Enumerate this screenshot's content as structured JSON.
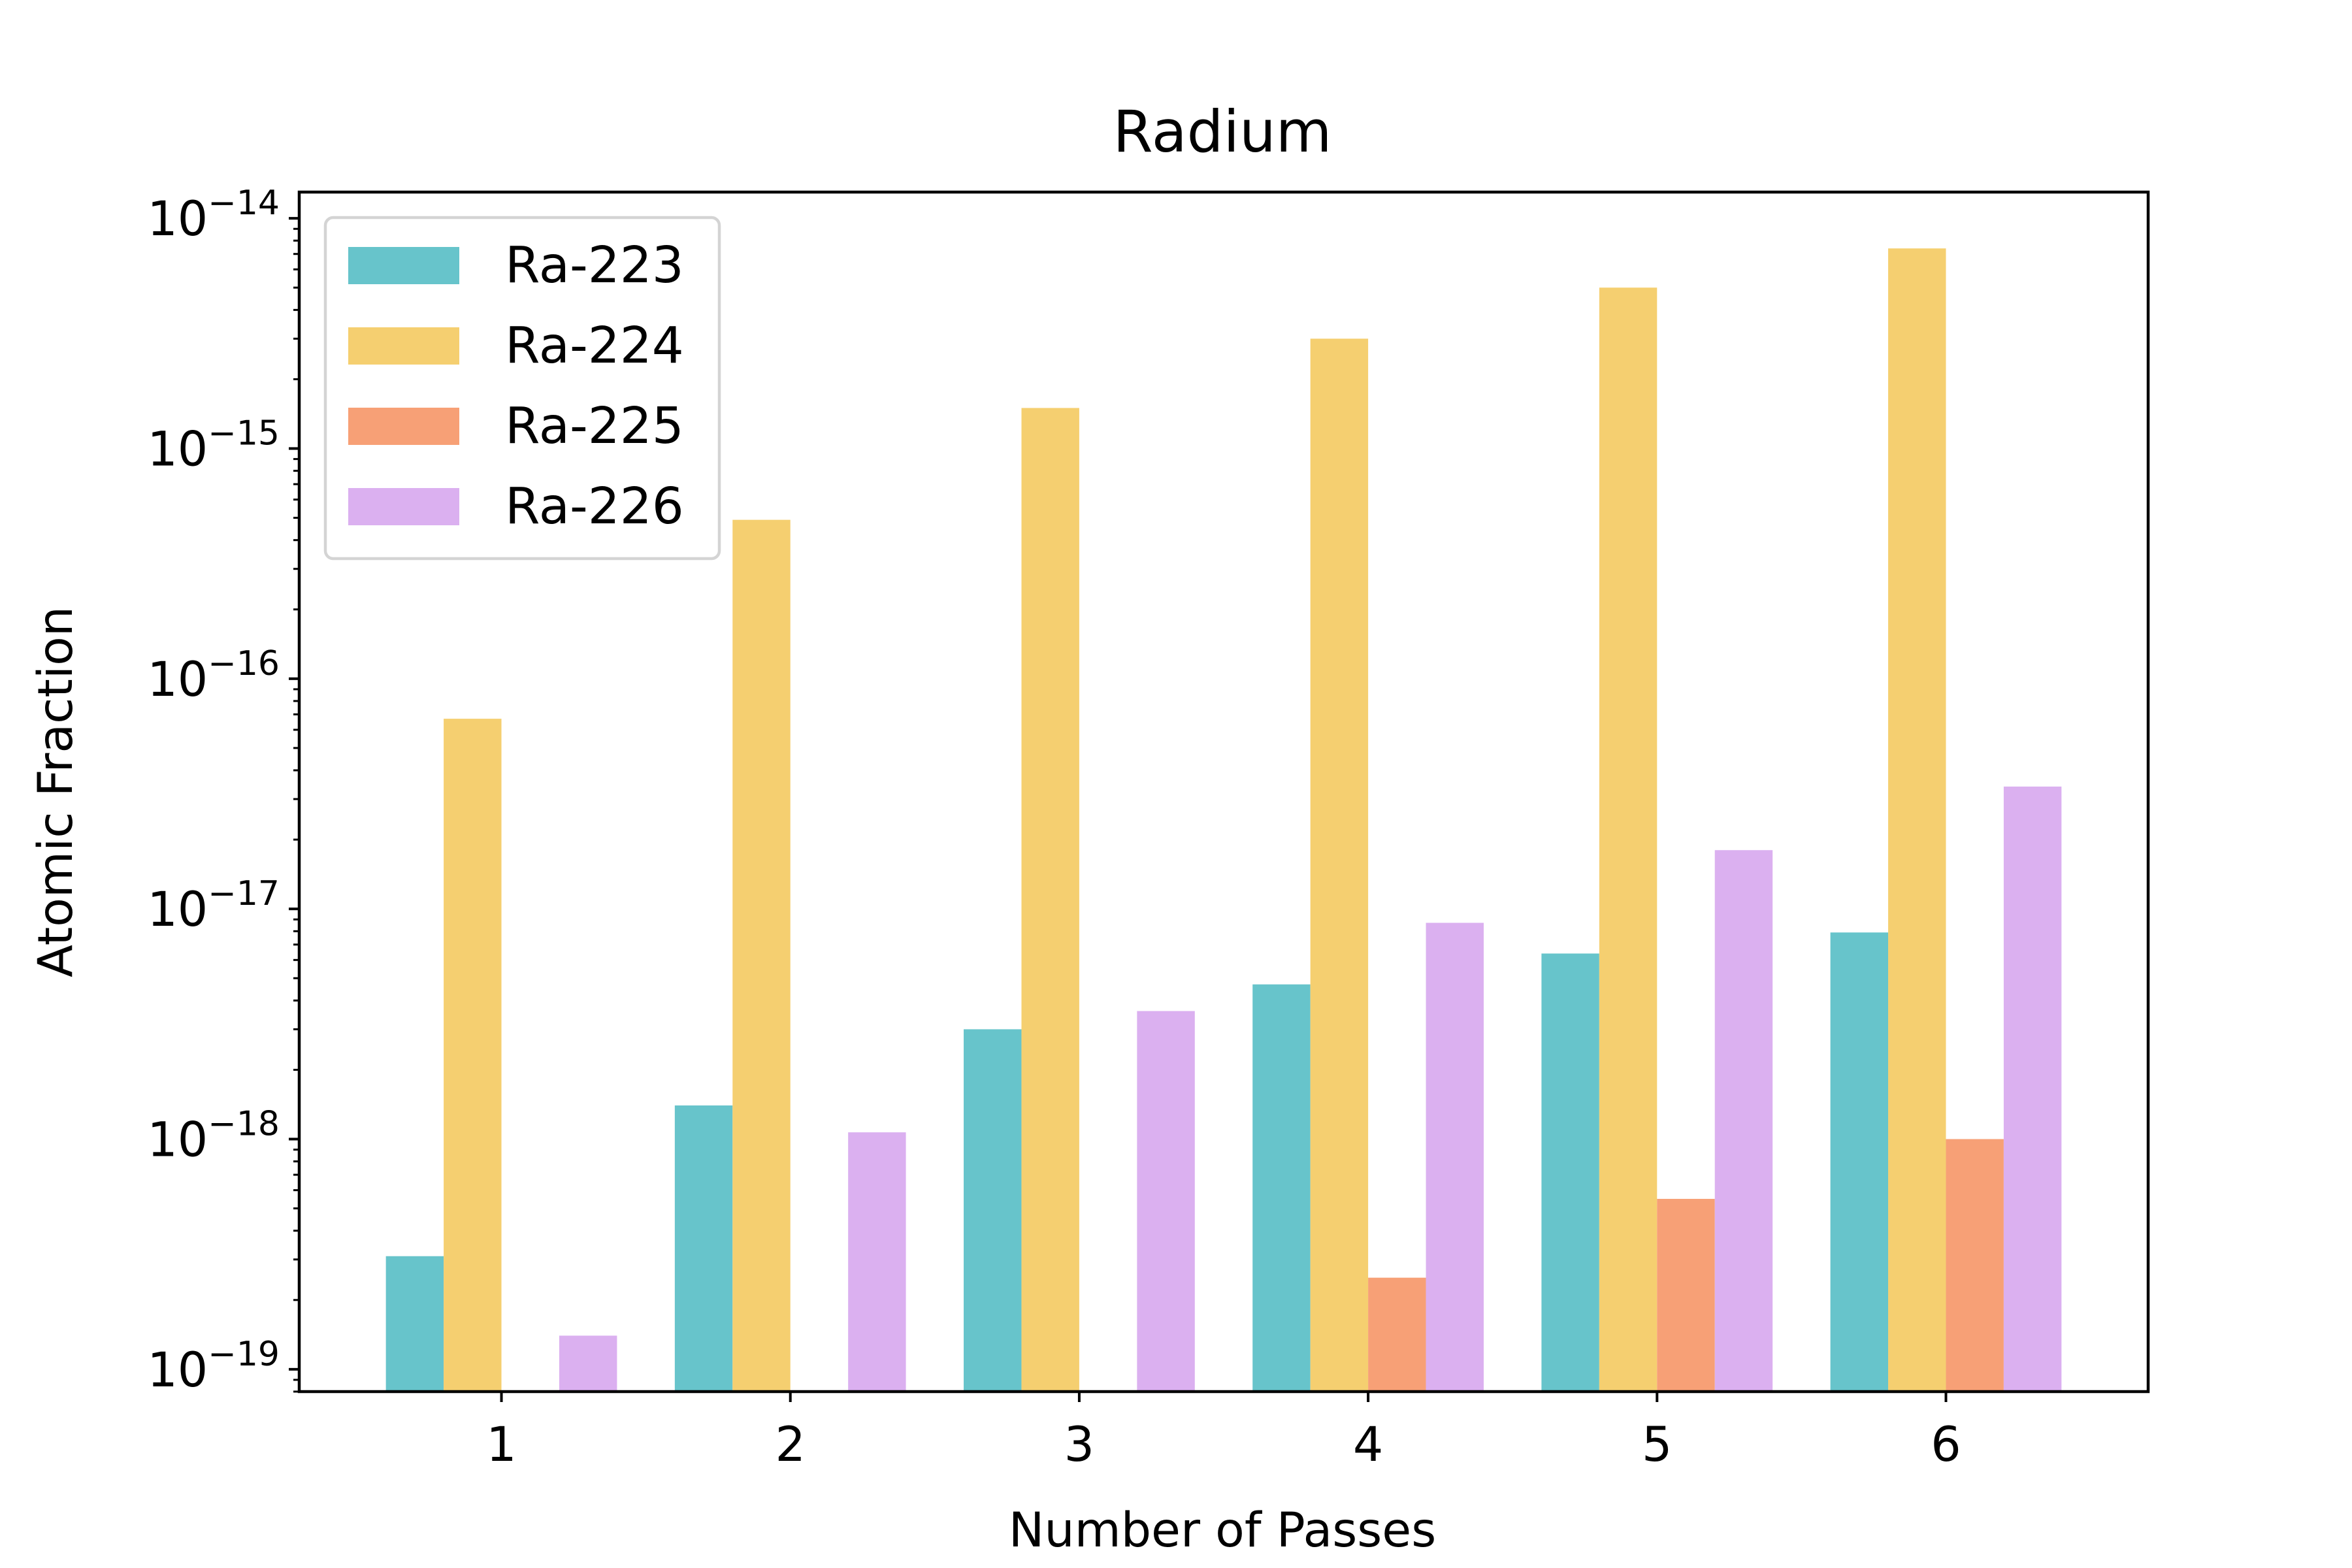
{
  "chart_data": {
    "type": "bar",
    "title": "Radium",
    "xlabel": "Number of Passes",
    "ylabel": "Atomic Fraction",
    "yscale": "log",
    "ylim": [
      8e-20,
      1.3e-14
    ],
    "categories": [
      "1",
      "2",
      "3",
      "4",
      "5",
      "6"
    ],
    "y_ticks": [
      {
        "base": "10",
        "exp": "−19",
        "value": 1e-19
      },
      {
        "base": "10",
        "exp": "−18",
        "value": 1e-18
      },
      {
        "base": "10",
        "exp": "−17",
        "value": 1e-17
      },
      {
        "base": "10",
        "exp": "−16",
        "value": 1e-16
      },
      {
        "base": "10",
        "exp": "−15",
        "value": 1e-15
      },
      {
        "base": "10",
        "exp": "−14",
        "value": 1e-14
      }
    ],
    "series": [
      {
        "name": "Ra-223",
        "color": "#67c4cb",
        "values": [
          3.1e-19,
          1.4e-18,
          3e-18,
          4.7e-18,
          6.4e-18,
          7.9e-18
        ]
      },
      {
        "name": "Ra-224",
        "color": "#f5cf70",
        "values": [
          6.7e-17,
          4.9e-16,
          1.5e-15,
          3e-15,
          5e-15,
          7.4e-15
        ]
      },
      {
        "name": "Ra-225",
        "color": "#f7a076",
        "values": [
          null,
          null,
          null,
          2.5e-19,
          5.5e-19,
          1e-18
        ]
      },
      {
        "name": "Ra-226",
        "color": "#dbb0f0",
        "values": [
          1.4e-19,
          1.07e-18,
          3.6e-18,
          8.7e-18,
          1.8e-17,
          3.4e-17
        ]
      }
    ],
    "legend_position": "top-left",
    "grid": false
  }
}
